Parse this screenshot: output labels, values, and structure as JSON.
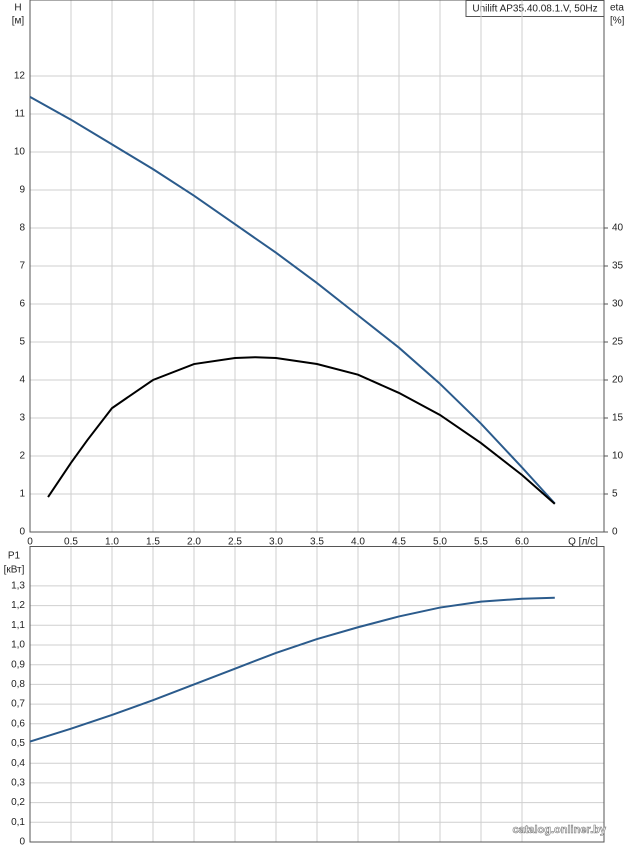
{
  "chart_data": [
    {
      "type": "line",
      "title": "Unilift AP35.40.08.1.V, 50Hz",
      "y_label": "H",
      "y_unit": "[м]",
      "y2_label": "eta",
      "y2_unit": "[%]",
      "x_label": "Q [л/с]",
      "xlim": [
        0,
        7
      ],
      "xticks": [
        0,
        0.5,
        {
          "value": 1,
          "label": "1.0"
        },
        1.5,
        {
          "value": 2,
          "label": "2.0"
        },
        2.5,
        {
          "value": 3,
          "label": "3.0"
        },
        3.5,
        {
          "value": 4,
          "label": "4.0"
        },
        4.5,
        {
          "value": 5,
          "label": "5.0"
        },
        5.5,
        {
          "value": 6,
          "label": "6.0"
        }
      ],
      "ylim": [
        0,
        14
      ],
      "yticks": [
        0,
        1,
        2,
        3,
        4,
        5,
        6,
        7,
        8,
        9,
        10,
        11,
        12
      ],
      "y2lim": [
        0,
        70
      ],
      "y2ticks": [
        0,
        5,
        10,
        15,
        20,
        25,
        30,
        35,
        40
      ],
      "grid": true,
      "series": [
        {
          "color": "#2b5b8c",
          "x": [
            0,
            0.5,
            1,
            1.5,
            2,
            2.5,
            3,
            3.5,
            4,
            4.5,
            5,
            5.5,
            6,
            6.4
          ],
          "values": [
            11.45,
            10.85,
            10.2,
            9.55,
            8.85,
            8.1,
            7.35,
            6.55,
            5.7,
            4.85,
            3.9,
            2.85,
            1.7,
            0.75
          ]
        },
        {
          "color": "#000000",
          "axis": "y2",
          "x": [
            0.22,
            0.5,
            0.7,
            1,
            1.5,
            2,
            2.5,
            2.75,
            3,
            3.5,
            4,
            4.5,
            5,
            5.5,
            6,
            6.4
          ],
          "values": [
            4.6,
            9.1,
            12.1,
            16.3,
            20,
            22.1,
            22.9,
            23,
            22.9,
            22.1,
            20.7,
            18.3,
            15.4,
            11.7,
            7.5,
            3.7
          ]
        }
      ]
    },
    {
      "type": "line",
      "y_label": "P1",
      "y_unit": "[кВт]",
      "ylim": [
        0,
        1.5
      ],
      "yticks": [
        0,
        {
          "value": 0.1,
          "label": "0,1"
        },
        {
          "value": 0.2,
          "label": "0,2"
        },
        {
          "value": 0.3,
          "label": "0,3"
        },
        {
          "value": 0.4,
          "label": "0,4"
        },
        {
          "value": 0.5,
          "label": "0,5"
        },
        {
          "value": 0.6,
          "label": "0,6"
        },
        {
          "value": 0.7,
          "label": "0,7"
        },
        {
          "value": 0.8,
          "label": "0,8"
        },
        {
          "value": 0.9,
          "label": "0,9"
        },
        {
          "value": 1,
          "label": "1,0"
        },
        {
          "value": 1.1,
          "label": "1,1"
        },
        {
          "value": 1.2,
          "label": "1,2"
        },
        {
          "value": 1.3,
          "label": "1,3"
        }
      ],
      "grid": true,
      "series": [
        {
          "color": "#2b5b8c",
          "x": [
            0,
            0.5,
            1,
            1.5,
            2,
            2.5,
            3,
            3.5,
            4,
            4.5,
            5,
            5.5,
            6,
            6.4
          ],
          "values": [
            0.51,
            0.575,
            0.645,
            0.72,
            0.8,
            0.88,
            0.96,
            1.03,
            1.09,
            1.145,
            1.19,
            1.22,
            1.235,
            1.24
          ]
        }
      ]
    }
  ],
  "watermark": "catalog.onliner.by"
}
